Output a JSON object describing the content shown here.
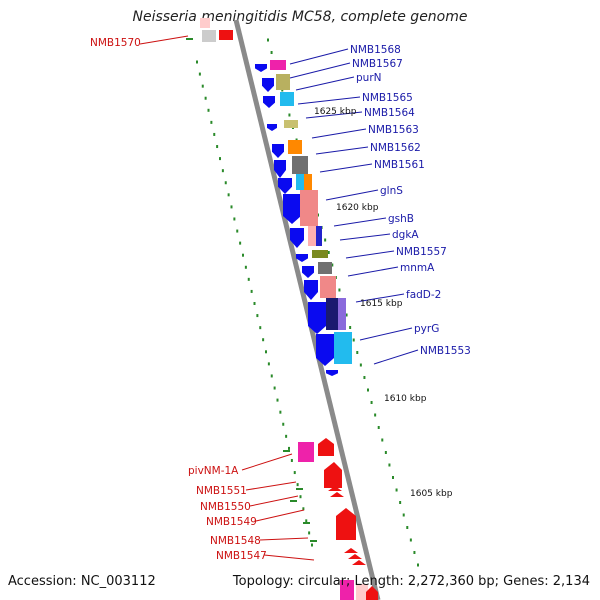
{
  "title": "Neisseria meningitidis MC58, complete genome",
  "footer": {
    "accession": "Accession: NC_003112",
    "stats": "Topology: circular; Length: 2,272,360 bp; Genes: 2,134"
  },
  "kbp_labels": [
    "1625 kbp",
    "1620 kbp",
    "1615 kbp",
    "1610 kbp",
    "1605 kbp"
  ],
  "gene_labels_blue": [
    "NMB1568",
    "NMB1567",
    "purN",
    "NMB1565",
    "NMB1564",
    "NMB1563",
    "NMB1562",
    "NMB1561",
    "glnS",
    "gshB",
    "dgkA",
    "NMB1557",
    "mnmA",
    "fadD-2",
    "pyrG",
    "NMB1553"
  ],
  "gene_labels_red": [
    "NMB1570",
    "pivNM-1A",
    "NMB1551",
    "NMB1550",
    "NMB1549",
    "NMB1548",
    "NMB1547"
  ],
  "colors": {
    "backbone": "#8a8a8a",
    "cds_forward": "#0a0af0",
    "reverse_strand": "#ee1111",
    "tick_green": "#2a8a2a",
    "label_blue": "#1a1aa8",
    "label_red": "#cc1111"
  }
}
